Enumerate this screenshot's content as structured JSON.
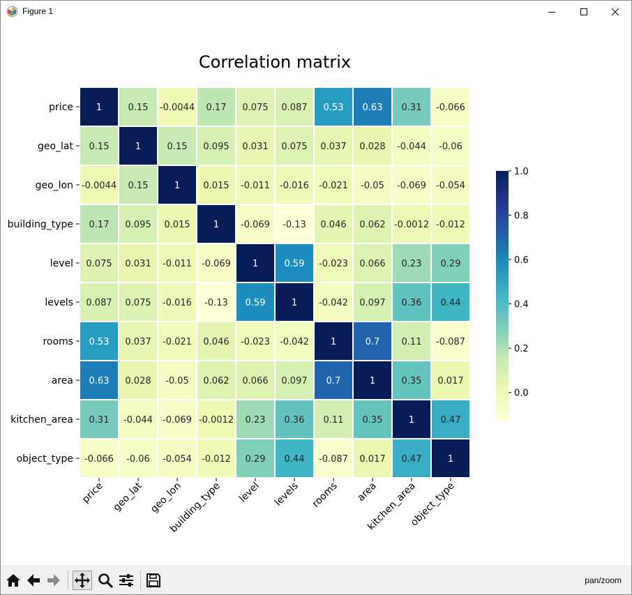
{
  "window": {
    "title": "Figure 1"
  },
  "toolbar": {
    "buttons": [
      {
        "name": "home-icon",
        "active": false
      },
      {
        "name": "back-icon",
        "active": false
      },
      {
        "name": "forward-icon",
        "active": false
      },
      {
        "name": "pan-icon",
        "active": true
      },
      {
        "name": "zoom-icon",
        "active": false
      },
      {
        "name": "configure-subplots-icon",
        "active": false
      },
      {
        "name": "save-icon",
        "active": false
      }
    ],
    "mode": "pan/zoom"
  },
  "chart_data": {
    "type": "heatmap",
    "title": "Correlation matrix",
    "labels": [
      "price",
      "geo_lat",
      "geo_lon",
      "building_type",
      "level",
      "levels",
      "rooms",
      "area",
      "kitchen_area",
      "object_type"
    ],
    "values": [
      [
        1,
        0.15,
        -0.0044,
        0.17,
        0.075,
        0.087,
        0.53,
        0.63,
        0.31,
        -0.066
      ],
      [
        0.15,
        1,
        0.15,
        0.095,
        0.031,
        0.075,
        0.037,
        0.028,
        -0.044,
        -0.06
      ],
      [
        -0.0044,
        0.15,
        1,
        0.015,
        -0.011,
        -0.016,
        -0.021,
        -0.05,
        -0.069,
        -0.054
      ],
      [
        0.17,
        0.095,
        0.015,
        1,
        -0.069,
        -0.13,
        0.046,
        0.062,
        -0.0012,
        -0.012
      ],
      [
        0.075,
        0.031,
        -0.011,
        -0.069,
        1,
        0.59,
        -0.023,
        0.066,
        0.23,
        0.29
      ],
      [
        0.087,
        0.075,
        -0.016,
        -0.13,
        0.59,
        1,
        -0.042,
        0.097,
        0.36,
        0.44
      ],
      [
        0.53,
        0.037,
        -0.021,
        0.046,
        -0.023,
        -0.042,
        1,
        0.7,
        0.11,
        -0.087
      ],
      [
        0.63,
        0.028,
        -0.05,
        0.062,
        0.066,
        0.097,
        0.7,
        1,
        0.35,
        0.017
      ],
      [
        0.31,
        -0.044,
        -0.069,
        -0.0012,
        0.23,
        0.36,
        0.11,
        0.35,
        1,
        0.47
      ],
      [
        -0.066,
        -0.06,
        -0.054,
        -0.012,
        0.29,
        0.44,
        -0.087,
        0.017,
        0.47,
        1
      ]
    ],
    "annotations": [
      [
        "1",
        "0.15",
        "-0.0044",
        "0.17",
        "0.075",
        "0.087",
        "0.53",
        "0.63",
        "0.31",
        "-0.066"
      ],
      [
        "0.15",
        "1",
        "0.15",
        "0.095",
        "0.031",
        "0.075",
        "0.037",
        "0.028",
        "-0.044",
        "-0.06"
      ],
      [
        "-0.0044",
        "0.15",
        "1",
        "0.015",
        "-0.011",
        "-0.016",
        "-0.021",
        "-0.05",
        "-0.069",
        "-0.054"
      ],
      [
        "0.17",
        "0.095",
        "0.015",
        "1",
        "-0.069",
        "-0.13",
        "0.046",
        "0.062",
        "-0.0012",
        "-0.012"
      ],
      [
        "0.075",
        "0.031",
        "-0.011",
        "-0.069",
        "1",
        "0.59",
        "-0.023",
        "0.066",
        "0.23",
        "0.29"
      ],
      [
        "0.087",
        "0.075",
        "-0.016",
        "-0.13",
        "0.59",
        "1",
        "-0.042",
        "0.097",
        "0.36",
        "0.44"
      ],
      [
        "0.53",
        "0.037",
        "-0.021",
        "0.046",
        "-0.023",
        "-0.042",
        "1",
        "0.7",
        "0.11",
        "-0.087"
      ],
      [
        "0.63",
        "0.028",
        "-0.05",
        "0.062",
        "0.066",
        "0.097",
        "0.7",
        "1",
        "0.35",
        "0.017"
      ],
      [
        "0.31",
        "-0.044",
        "-0.069",
        "-0.0012",
        "0.23",
        "0.36",
        "0.11",
        "0.35",
        "1",
        "0.47"
      ],
      [
        "-0.066",
        "-0.06",
        "-0.054",
        "-0.012",
        "0.29",
        "0.44",
        "-0.087",
        "0.017",
        "0.47",
        "1"
      ]
    ],
    "colormap": "YlGnBu",
    "colorbar": {
      "range": [
        -0.13,
        1.0
      ],
      "ticks": [
        0.0,
        0.2,
        0.4,
        0.6,
        0.8,
        1.0
      ],
      "tick_labels": [
        "0.0",
        "0.2",
        "0.4",
        "0.6",
        "0.8",
        "1.0"
      ]
    },
    "grid": false,
    "cell_borders": true
  }
}
